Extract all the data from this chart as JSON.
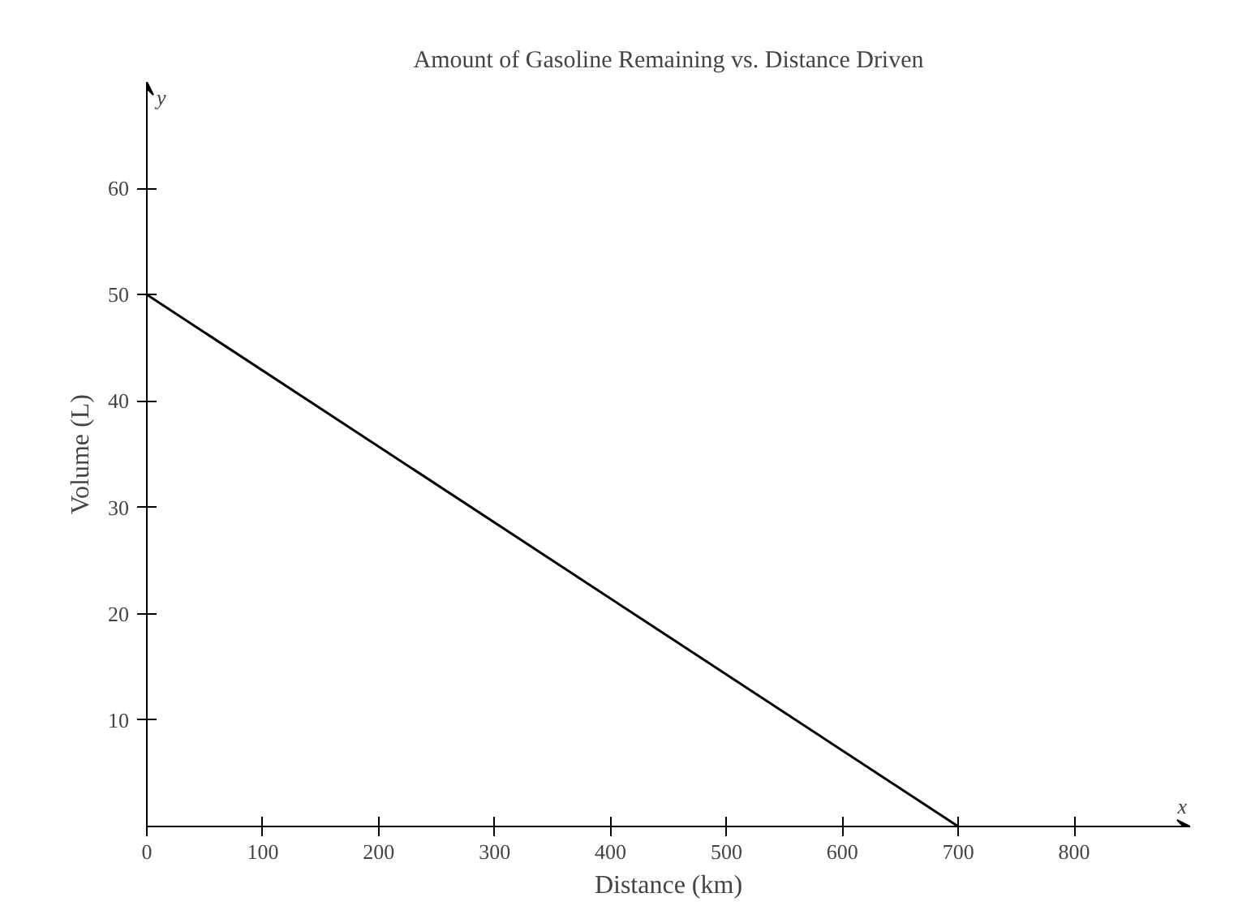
{
  "chart_data": {
    "type": "line",
    "title": "Amount of Gasoline Remaining vs. Distance Driven",
    "xlabel": "Distance (km)",
    "ylabel": "Volume (L)",
    "x": [
      0,
      700
    ],
    "series": [
      {
        "color": "#000000",
        "values": [
          50,
          0
        ]
      }
    ],
    "xlim": [
      0,
      900
    ],
    "ylim": [
      0,
      70
    ],
    "xticks": [
      {
        "value": 0,
        "label": "0"
      },
      100,
      200,
      300,
      400,
      500,
      600,
      700,
      800
    ],
    "yticks": [
      10,
      20,
      30,
      40,
      50,
      60
    ],
    "annotations": [
      "x",
      "y"
    ],
    "grid": false
  }
}
